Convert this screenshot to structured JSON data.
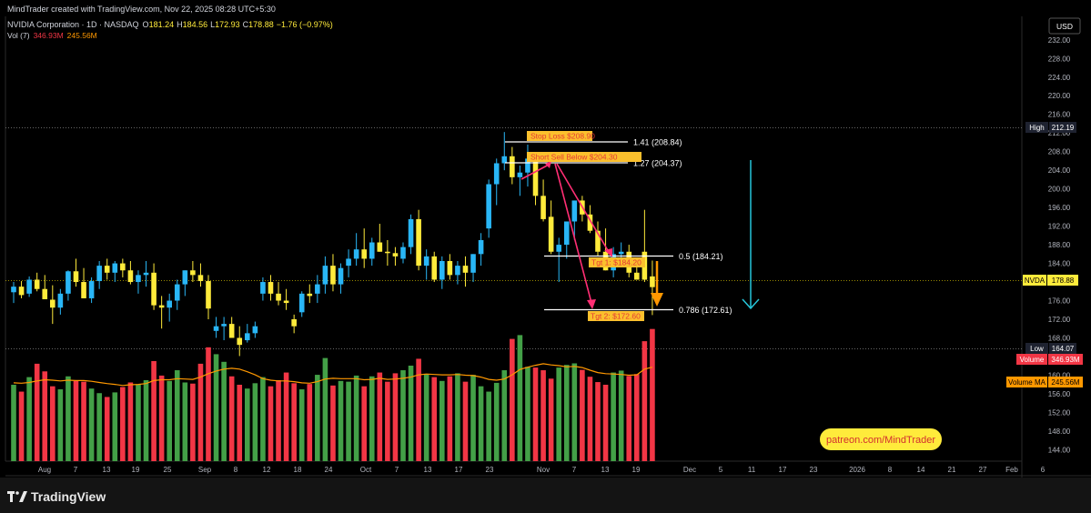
{
  "header": {
    "attribution": "MindTrader created with TradingView.com, Nov 22, 2025 08:28 UTC+5:30"
  },
  "legend": {
    "symbol_line": "NVIDIA Corporation · 1D · NASDAQ",
    "o_label": "O",
    "o_value": "181.24",
    "h_label": "H",
    "h_value": "184.56",
    "l_label": "L",
    "l_value": "172.93",
    "c_label": "C",
    "c_value": "178.88",
    "change": "−1.76 (−0.97%)",
    "vol_label": "Vol (7)",
    "vol_value": "346.93M",
    "vol_ma_value": "245.56M"
  },
  "currency_button": "USD",
  "price_axis": {
    "ticks": [
      "140.00",
      "144.00",
      "148.00",
      "152.00",
      "156.00",
      "160.00",
      "164.00",
      "168.00",
      "172.00",
      "176.00",
      "180.00",
      "184.00",
      "188.00",
      "192.00",
      "196.00",
      "200.00",
      "204.00",
      "208.00",
      "212.00",
      "216.00",
      "220.00",
      "224.00",
      "228.00",
      "232.00"
    ],
    "min": 140,
    "max": 232
  },
  "badges": {
    "high_label": "High",
    "high_value": "212.19",
    "symbol_label": "NVDA",
    "symbol_value": "178.88",
    "low_label": "Low",
    "low_value": "164.07",
    "volume_label": "Volume",
    "volume_value": "346.93M",
    "volume_ma_label": "Volume MA",
    "volume_ma_value": "245.56M"
  },
  "time_axis": [
    "Aug",
    "7",
    "13",
    "19",
    "25",
    "Sep",
    "8",
    "12",
    "18",
    "24",
    "Oct",
    "7",
    "13",
    "17",
    "23",
    "Nov",
    "7",
    "13",
    "19",
    "Dec",
    "5",
    "11",
    "17",
    "23",
    "2026",
    "8",
    "14",
    "21",
    "27",
    "Feb",
    "6"
  ],
  "annotations": {
    "stop_loss": "Stop Loss $208.90",
    "short_sell": "Short Sell Below $204.30",
    "tgt1": "Tgt 1: $184.20",
    "tgt2": "Tgt 2: $172.60",
    "fib_141": "1.41 (208.84)",
    "fib_127": "1.27 (204.37)",
    "fib_05": "0.5 (184.21)",
    "fib_0786": "0.786 (172.61)",
    "patreon": "patreon.com/MindTrader"
  },
  "footer": {
    "brand": "TradingView"
  },
  "colors": {
    "bull": "#29b6f6",
    "bear": "#ffeb3b",
    "vol_up": "#43a047",
    "vol_down": "#f23645",
    "vol_ma": "#ff9800",
    "arrow_pink": "#ff2e74",
    "arrow_cyan": "#26c6da",
    "arrow_orange": "#ff9800",
    "label_bg": "#fbc02d"
  },
  "chart_data": {
    "type": "candlestick",
    "title": "NVIDIA Corporation · 1D · NASDAQ",
    "ylim": [
      140,
      232
    ],
    "candles": [
      [
        177.8,
        180.0,
        175.5,
        179.0
      ],
      [
        179.0,
        180.2,
        176.5,
        177.2
      ],
      [
        177.5,
        181.2,
        176.8,
        180.5
      ],
      [
        180.5,
        182.0,
        178.0,
        178.5
      ],
      [
        178.5,
        181.5,
        177.0,
        176.3
      ],
      [
        176.2,
        179.3,
        171.0,
        174.5
      ],
      [
        174.5,
        178.5,
        173.0,
        177.5
      ],
      [
        177.5,
        182.5,
        176.0,
        182.3
      ],
      [
        182.3,
        185.0,
        179.0,
        180.0
      ],
      [
        180.0,
        183.0,
        176.5,
        176.5
      ],
      [
        176.5,
        181.0,
        175.5,
        180.2
      ],
      [
        180.2,
        184.5,
        178.5,
        183.5
      ],
      [
        183.5,
        185.0,
        180.5,
        182.0
      ],
      [
        182.0,
        184.5,
        180.0,
        184.0
      ],
      [
        184.0,
        185.0,
        181.0,
        182.5
      ],
      [
        182.5,
        184.5,
        179.5,
        180.0
      ],
      [
        180.0,
        182.5,
        177.5,
        181.5
      ],
      [
        181.5,
        184.5,
        179.0,
        182.0
      ],
      [
        182.0,
        184.0,
        174.0,
        175.0
      ],
      [
        175.0,
        177.0,
        170.0,
        174.5
      ],
      [
        174.5,
        177.5,
        171.5,
        176.0
      ],
      [
        176.0,
        180.5,
        174.0,
        179.5
      ],
      [
        179.5,
        182.5,
        177.0,
        182.5
      ],
      [
        182.5,
        184.5,
        180.0,
        181.5
      ],
      [
        181.5,
        184.0,
        179.0,
        180.2
      ],
      [
        180.2,
        181.5,
        172.0,
        174.3
      ],
      [
        169.5,
        172.5,
        168.0,
        170.5
      ],
      [
        170.5,
        172.5,
        167.5,
        171.0
      ],
      [
        171.0,
        172.5,
        168.0,
        168.0
      ],
      [
        168.0,
        170.5,
        164.1,
        166.5
      ],
      [
        167.5,
        171.0,
        167.0,
        169.0
      ],
      [
        169.0,
        171.5,
        168.0,
        170.5
      ],
      [
        177.5,
        181.0,
        176.0,
        180.0
      ],
      [
        180.0,
        181.5,
        176.0,
        177.5
      ],
      [
        177.5,
        180.0,
        175.0,
        176.0
      ],
      [
        176.0,
        178.5,
        174.0,
        175.5
      ],
      [
        172.0,
        173.0,
        169.0,
        170.5
      ],
      [
        173.5,
        178.0,
        172.5,
        177.5
      ],
      [
        177.5,
        179.5,
        175.5,
        177.0
      ],
      [
        177.5,
        181.5,
        175.5,
        179.5
      ],
      [
        179.5,
        185.5,
        177.5,
        183.5
      ],
      [
        183.5,
        186.0,
        178.0,
        179.5
      ],
      [
        179.5,
        184.0,
        177.5,
        183.0
      ],
      [
        183.5,
        187.0,
        181.0,
        185.0
      ],
      [
        185.0,
        190.5,
        183.5,
        187.0
      ],
      [
        187.0,
        191.5,
        183.0,
        185.0
      ],
      [
        185.0,
        189.5,
        183.5,
        188.5
      ],
      [
        188.5,
        192.5,
        186.5,
        186.5
      ],
      [
        186.5,
        189.0,
        183.5,
        186.2
      ],
      [
        186.2,
        187.5,
        183.5,
        185.5
      ],
      [
        185.0,
        188.5,
        184.0,
        187.5
      ],
      [
        187.5,
        194.5,
        186.0,
        193.5
      ],
      [
        193.5,
        195.5,
        182.5,
        183.5
      ],
      [
        183.5,
        187.0,
        180.5,
        185.5
      ],
      [
        185.5,
        186.5,
        180.0,
        180.5
      ],
      [
        180.5,
        185.5,
        178.5,
        184.5
      ],
      [
        184.5,
        186.0,
        180.5,
        181.5
      ],
      [
        181.5,
        184.5,
        179.5,
        183.5
      ],
      [
        183.5,
        185.5,
        179.0,
        182.0
      ],
      [
        182.0,
        186.0,
        180.0,
        186.0
      ],
      [
        186.0,
        190.5,
        183.5,
        189.0
      ],
      [
        191.5,
        202.0,
        189.5,
        201.0
      ],
      [
        201.0,
        206.5,
        196.5,
        205.5
      ],
      [
        205.5,
        212.2,
        204.0,
        207.0
      ],
      [
        207.0,
        209.0,
        201.0,
        202.5
      ],
      [
        202.5,
        205.0,
        198.5,
        203.5
      ],
      [
        203.5,
        209.5,
        200.5,
        206.5
      ],
      [
        206.5,
        207.5,
        196.5,
        198.5
      ],
      [
        198.5,
        202.0,
        193.0,
        193.5
      ],
      [
        194.0,
        197.5,
        186.0,
        186.5
      ],
      [
        186.5,
        189.5,
        180.0,
        188.0
      ],
      [
        188.0,
        193.0,
        185.0,
        193.0
      ],
      [
        193.0,
        197.5,
        189.0,
        197.5
      ],
      [
        197.5,
        198.5,
        193.0,
        194.5
      ],
      [
        194.5,
        196.5,
        190.5,
        191.0
      ],
      [
        191.0,
        193.0,
        185.5,
        186.5
      ],
      [
        186.5,
        191.5,
        182.5,
        182.5
      ],
      [
        182.5,
        187.5,
        181.0,
        186.0
      ],
      [
        186.0,
        188.5,
        183.5,
        186.5
      ],
      [
        186.5,
        188.0,
        181.0,
        182.0
      ],
      [
        182.0,
        184.5,
        180.5,
        180.5
      ],
      [
        186.5,
        195.5,
        180.0,
        180.5
      ],
      [
        181.2,
        184.6,
        172.9,
        178.9
      ]
    ],
    "volume_millions": [
      200,
      182,
      220,
      255,
      235,
      196,
      188,
      222,
      210,
      208,
      190,
      178,
      168,
      180,
      194,
      206,
      200,
      212,
      262,
      224,
      210,
      238,
      206,
      203,
      255,
      298,
      280,
      260,
      222,
      200,
      190,
      204,
      220,
      196,
      212,
      232,
      204,
      188,
      202,
      226,
      270,
      198,
      210,
      208,
      224,
      196,
      222,
      232,
      208,
      230,
      238,
      250,
      268,
      228,
      220,
      210,
      222,
      230,
      208,
      226,
      196,
      182,
      205,
      238,
      320,
      330,
      247,
      245,
      238,
      216,
      245,
      252,
      256,
      239,
      221,
      207,
      200,
      232,
      237,
      223,
      228,
      314,
      346
    ],
    "volume_ma_millions": [
      205,
      204,
      206,
      210,
      213,
      212,
      210,
      212,
      211,
      211,
      209,
      206,
      203,
      201,
      198,
      200,
      201,
      203,
      211,
      213,
      213,
      216,
      215,
      214,
      220,
      229,
      236,
      241,
      243,
      241,
      234,
      226,
      216,
      212,
      210,
      210,
      208,
      205,
      204,
      208,
      215,
      217,
      216,
      216,
      216,
      213,
      214,
      217,
      214,
      215,
      217,
      220,
      226,
      228,
      227,
      226,
      226,
      227,
      225,
      224,
      220,
      214,
      212,
      215,
      226,
      240,
      246,
      251,
      255,
      252,
      250,
      247,
      248,
      245,
      238,
      232,
      229,
      228,
      227,
      225,
      226,
      241,
      246
    ]
  }
}
